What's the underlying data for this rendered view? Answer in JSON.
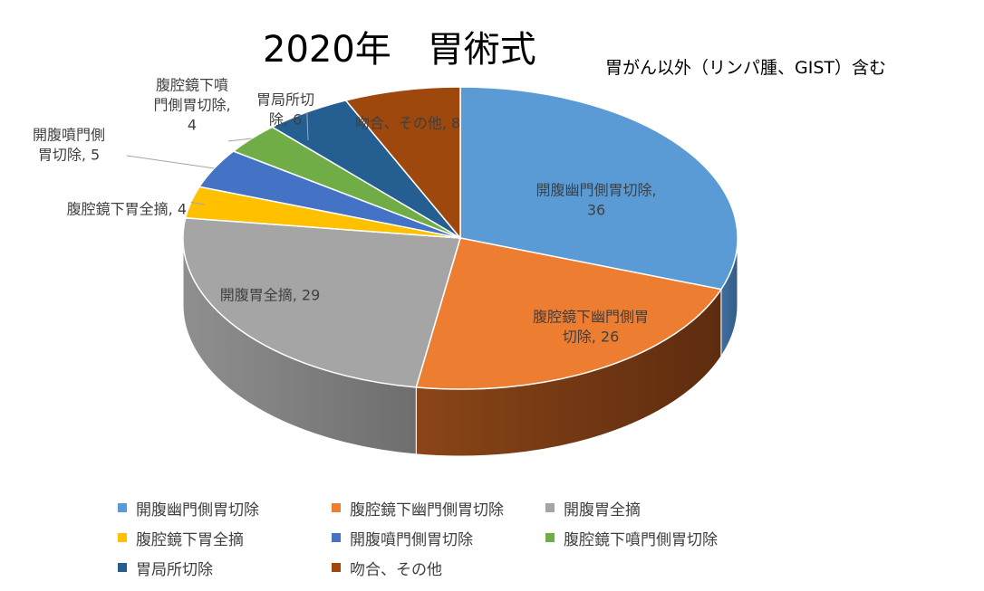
{
  "chart_data": {
    "type": "pie",
    "title": "2020年　胃術式",
    "subtitle": "胃がん以外（リンパ腫、GIST）含む",
    "legend_position": "bottom",
    "slices": [
      {
        "name": "開腹幽門側胃切除",
        "value": 36,
        "color": "#5B9BD5",
        "label": [
          "開腹幽門側胃切除,",
          "36"
        ]
      },
      {
        "name": "腹腔鏡下幽門側胃切除",
        "value": 26,
        "color": "#ED7D31",
        "label": [
          "腹腔鏡下幽門側胃",
          "切除, 26"
        ]
      },
      {
        "name": "開腹胃全摘",
        "value": 29,
        "color": "#A5A5A5",
        "label": [
          "開腹胃全摘, 29"
        ]
      },
      {
        "name": "腹腔鏡下胃全摘",
        "value": 4,
        "color": "#FFC000",
        "label": [
          "腹腔鏡下胃全摘, 4"
        ]
      },
      {
        "name": "開腹噴門側胃切除",
        "value": 5,
        "color": "#4472C4",
        "label": [
          "開腹噴門側",
          "胃切除, 5"
        ]
      },
      {
        "name": "腹腔鏡下噴門側胃切除",
        "value": 4,
        "color": "#70AD47",
        "label": [
          "腹腔鏡下噴",
          "門側胃切除,",
          "4"
        ]
      },
      {
        "name": "胃局所切除",
        "value": 6,
        "color": "#255E91",
        "label": [
          "胃局所切",
          "除, 6"
        ]
      },
      {
        "name": "吻合、その他",
        "value": 8,
        "color": "#9E480E",
        "label": [
          "吻合、その他, 8"
        ]
      }
    ]
  }
}
